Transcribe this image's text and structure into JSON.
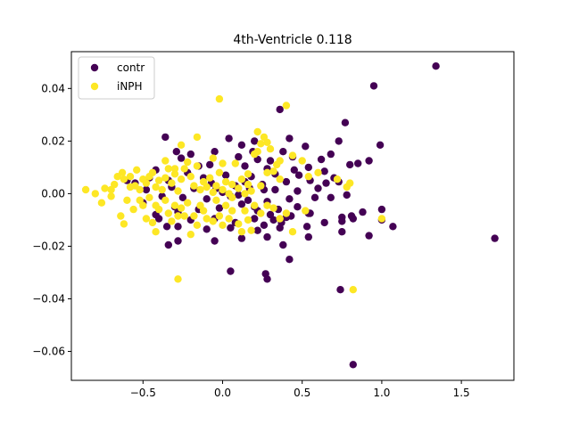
{
  "chart_data": {
    "type": "scatter",
    "title": "4th-Ventricle 0.118",
    "xlabel": "",
    "ylabel": "",
    "xlim": [
      -0.95,
      1.83
    ],
    "ylim": [
      -0.071,
      0.054
    ],
    "xticks": [
      {
        "value": -0.5,
        "label": "−0.5"
      },
      {
        "value": 0.0,
        "label": "0.0"
      },
      {
        "value": 0.5,
        "label": "0.5"
      },
      {
        "value": 1.0,
        "label": "1.0"
      },
      {
        "value": 1.5,
        "label": "1.5"
      }
    ],
    "yticks": [
      {
        "value": -0.06,
        "label": "−0.06"
      },
      {
        "value": -0.04,
        "label": "−0.04"
      },
      {
        "value": -0.02,
        "label": "−0.02"
      },
      {
        "value": 0.0,
        "label": "0.00"
      },
      {
        "value": 0.02,
        "label": "0.02"
      },
      {
        "value": 0.04,
        "label": "0.04"
      }
    ],
    "grid": false,
    "legend_position": "top-left",
    "series": [
      {
        "name": "contr",
        "color": "#440154",
        "points": [
          [
            1.34,
            0.0485
          ],
          [
            0.95,
            0.041
          ],
          [
            0.36,
            0.032
          ],
          [
            0.77,
            0.027
          ],
          [
            -0.36,
            0.0215
          ],
          [
            0.42,
            0.021
          ],
          [
            0.73,
            0.02
          ],
          [
            0.99,
            0.0185
          ],
          [
            0.52,
            0.018
          ],
          [
            0.2,
            0.02
          ],
          [
            0.04,
            0.021
          ],
          [
            -0.29,
            0.016
          ],
          [
            -0.2,
            0.015
          ],
          [
            -0.05,
            0.016
          ],
          [
            0.1,
            0.014
          ],
          [
            0.22,
            0.013
          ],
          [
            0.38,
            0.016
          ],
          [
            0.62,
            0.013
          ],
          [
            0.68,
            0.015
          ],
          [
            0.8,
            0.011
          ],
          [
            0.92,
            0.0125
          ],
          [
            0.85,
            0.0115
          ],
          [
            0.45,
            0.009
          ],
          [
            0.54,
            0.01
          ],
          [
            0.48,
            0.007
          ],
          [
            0.3,
            0.0125
          ],
          [
            0.14,
            0.0105
          ],
          [
            -0.08,
            0.011
          ],
          [
            -0.42,
            0.009
          ],
          [
            -0.22,
            0.008
          ],
          [
            -0.12,
            0.006
          ],
          [
            0.02,
            0.007
          ],
          [
            0.18,
            0.0065
          ],
          [
            0.33,
            0.0075
          ],
          [
            0.55,
            0.005
          ],
          [
            0.65,
            0.004
          ],
          [
            0.73,
            0.0045
          ],
          [
            0.4,
            0.0045
          ],
          [
            0.25,
            0.0035
          ],
          [
            0.08,
            0.003
          ],
          [
            -0.04,
            0.002
          ],
          [
            -0.18,
            0.002
          ],
          [
            -0.32,
            0.0025
          ],
          [
            -0.48,
            0.0015
          ],
          [
            -0.55,
            0.004
          ],
          [
            -0.38,
            -0.001
          ],
          [
            -0.25,
            -0.0015
          ],
          [
            -0.1,
            -0.002
          ],
          [
            0.05,
            -0.001
          ],
          [
            0.16,
            -0.0025
          ],
          [
            0.28,
            -0.003
          ],
          [
            0.42,
            -0.002
          ],
          [
            0.58,
            -0.0015
          ],
          [
            0.68,
            -0.0015
          ],
          [
            0.78,
            -0.0005
          ],
          [
            0.47,
            -0.005
          ],
          [
            0.35,
            -0.006
          ],
          [
            0.22,
            -0.0065
          ],
          [
            0.12,
            -0.004
          ],
          [
            -0.02,
            -0.0055
          ],
          [
            -0.15,
            -0.006
          ],
          [
            -0.3,
            -0.005
          ],
          [
            -0.42,
            -0.008
          ],
          [
            -0.5,
            -0.0035
          ],
          [
            0.3,
            -0.008
          ],
          [
            0.4,
            -0.009
          ],
          [
            0.55,
            -0.0075
          ],
          [
            0.64,
            -0.011
          ],
          [
            0.75,
            -0.009
          ],
          [
            0.81,
            -0.0085
          ],
          [
            0.88,
            -0.007
          ],
          [
            1.0,
            -0.006
          ],
          [
            0.54,
            -0.0075
          ],
          [
            0.43,
            -0.0085
          ],
          [
            0.32,
            -0.01
          ],
          [
            0.2,
            -0.0095
          ],
          [
            0.08,
            -0.011
          ],
          [
            -0.05,
            -0.0095
          ],
          [
            -0.2,
            -0.01
          ],
          [
            -0.35,
            -0.0125
          ],
          [
            -0.4,
            -0.0095
          ],
          [
            -0.28,
            -0.0125
          ],
          [
            0.05,
            -0.013
          ],
          [
            0.22,
            -0.014
          ],
          [
            0.36,
            -0.013
          ],
          [
            0.53,
            -0.0125
          ],
          [
            0.75,
            -0.0105
          ],
          [
            0.82,
            -0.0095
          ],
          [
            1.0,
            -0.01
          ],
          [
            1.07,
            -0.0125
          ],
          [
            0.75,
            -0.0145
          ],
          [
            0.92,
            -0.016
          ],
          [
            0.54,
            -0.0165
          ],
          [
            0.38,
            -0.0195
          ],
          [
            0.28,
            -0.0165
          ],
          [
            0.12,
            -0.017
          ],
          [
            -0.05,
            -0.018
          ],
          [
            -0.28,
            -0.018
          ],
          [
            -0.34,
            -0.0195
          ],
          [
            1.71,
            -0.017
          ],
          [
            0.42,
            -0.025
          ],
          [
            0.05,
            -0.0295
          ],
          [
            0.27,
            -0.0305
          ],
          [
            0.28,
            -0.0325
          ],
          [
            0.74,
            -0.0365
          ],
          [
            0.82,
            -0.065
          ],
          [
            0.17,
            0.002
          ],
          [
            0.26,
            0.0015
          ],
          [
            0.1,
            -0.0005
          ],
          [
            0.0,
            0.0005
          ],
          [
            -0.07,
            0.004
          ],
          [
            0.14,
            0.0045
          ],
          [
            0.33,
            0.0015
          ],
          [
            0.47,
            0.001
          ],
          [
            0.6,
            0.002
          ],
          [
            0.44,
            0.014
          ],
          [
            0.28,
            0.0095
          ],
          [
            -0.15,
            0.0105
          ],
          [
            -0.26,
            0.0135
          ],
          [
            0.12,
            0.0185
          ],
          [
            0.19,
            0.016
          ],
          [
            -0.34,
            0.005
          ],
          [
            -0.46,
            0.006
          ],
          [
            -0.6,
            0.005
          ],
          [
            -0.28,
            -0.007
          ],
          [
            0.2,
            -0.005
          ],
          [
            0.37,
            -0.011
          ],
          [
            0.26,
            -0.012
          ],
          [
            -0.1,
            -0.0135
          ],
          [
            0.64,
            0.0085
          ],
          [
            0.7,
            0.006
          ]
        ]
      },
      {
        "name": "iNPH",
        "color": "#fde725",
        "points": [
          [
            -0.86,
            0.0015
          ],
          [
            -0.8,
            0.0
          ],
          [
            -0.74,
            0.002
          ],
          [
            -0.7,
            -0.001
          ],
          [
            -0.68,
            0.0035
          ],
          [
            -0.62,
            0.0055
          ],
          [
            -0.63,
            0.008
          ],
          [
            -0.58,
            0.0065
          ],
          [
            -0.55,
            0.003
          ],
          [
            -0.52,
            0.0015
          ],
          [
            -0.5,
            0.0055
          ],
          [
            -0.48,
            0.004
          ],
          [
            -0.46,
            0.0065
          ],
          [
            -0.44,
            0.008
          ],
          [
            -0.42,
            0.0025
          ],
          [
            -0.4,
            0.005
          ],
          [
            -0.38,
            0.0015
          ],
          [
            -0.36,
            0.006
          ],
          [
            -0.34,
            0.0095
          ],
          [
            -0.32,
            0.004
          ],
          [
            -0.3,
            0.0075
          ],
          [
            -0.28,
            0.001
          ],
          [
            -0.26,
            0.0055
          ],
          [
            -0.24,
            0.0095
          ],
          [
            -0.22,
            0.012
          ],
          [
            -0.2,
            0.0065
          ],
          [
            -0.18,
            0.003
          ],
          [
            -0.16,
            0.0105
          ],
          [
            -0.14,
            0.0015
          ],
          [
            -0.12,
            0.0045
          ],
          [
            -0.1,
            0.0025
          ],
          [
            -0.08,
            0.006
          ],
          [
            -0.06,
            0.0005
          ],
          [
            -0.04,
            0.003
          ],
          [
            -0.02,
            0.008
          ],
          [
            0.0,
            0.0015
          ],
          [
            0.02,
            0.0045
          ],
          [
            0.04,
            0.0
          ],
          [
            0.06,
            0.0035
          ],
          [
            0.08,
            0.0115
          ],
          [
            0.1,
            0.002
          ],
          [
            0.12,
            0.0055
          ],
          [
            0.14,
            0.0
          ],
          [
            0.16,
            0.0035
          ],
          [
            0.18,
            0.001
          ],
          [
            0.2,
            0.015
          ],
          [
            0.22,
            0.0235
          ],
          [
            0.24,
            0.019
          ],
          [
            0.26,
            0.0215
          ],
          [
            0.28,
            0.0195
          ],
          [
            0.3,
            0.017
          ],
          [
            0.32,
            0.0085
          ],
          [
            0.34,
            0.011
          ],
          [
            0.36,
            0.0055
          ],
          [
            0.4,
            0.0335
          ],
          [
            0.44,
            0.0145
          ],
          [
            0.5,
            0.0125
          ],
          [
            0.54,
            0.0065
          ],
          [
            0.6,
            0.008
          ],
          [
            0.72,
            0.0055
          ],
          [
            0.78,
            0.0025
          ],
          [
            0.8,
            0.004
          ],
          [
            -0.02,
            0.036
          ],
          [
            0.22,
            0.016
          ],
          [
            -0.16,
            0.0215
          ],
          [
            -0.26,
            0.0185
          ],
          [
            -0.6,
            -0.0025
          ],
          [
            -0.64,
            -0.0085
          ],
          [
            -0.62,
            -0.0115
          ],
          [
            -0.56,
            -0.006
          ],
          [
            -0.5,
            -0.0045
          ],
          [
            -0.48,
            -0.0095
          ],
          [
            -0.46,
            -0.0015
          ],
          [
            -0.44,
            -0.011
          ],
          [
            -0.42,
            -0.0145
          ],
          [
            -0.4,
            -0.006
          ],
          [
            -0.36,
            -0.0025
          ],
          [
            -0.34,
            -0.0075
          ],
          [
            -0.32,
            -0.0105
          ],
          [
            -0.3,
            -0.0045
          ],
          [
            -0.28,
            -0.0085
          ],
          [
            -0.26,
            -0.0055
          ],
          [
            -0.24,
            -0.0085
          ],
          [
            -0.22,
            -0.0035
          ],
          [
            -0.2,
            -0.0155
          ],
          [
            -0.18,
            -0.0085
          ],
          [
            -0.16,
            -0.012
          ],
          [
            -0.14,
            -0.0045
          ],
          [
            -0.12,
            -0.0065
          ],
          [
            -0.1,
            -0.0095
          ],
          [
            -0.06,
            -0.0105
          ],
          [
            -0.04,
            -0.0025
          ],
          [
            -0.02,
            -0.0085
          ],
          [
            0.0,
            -0.012
          ],
          [
            0.02,
            -0.0045
          ],
          [
            0.04,
            -0.0095
          ],
          [
            0.06,
            -0.0065
          ],
          [
            0.1,
            -0.0115
          ],
          [
            0.12,
            -0.0145
          ],
          [
            0.14,
            -0.0065
          ],
          [
            0.16,
            -0.01
          ],
          [
            0.18,
            -0.014
          ],
          [
            0.2,
            -0.0045
          ],
          [
            0.24,
            -0.0075
          ],
          [
            0.28,
            -0.0045
          ],
          [
            0.32,
            -0.0055
          ],
          [
            0.36,
            -0.0095
          ],
          [
            0.4,
            -0.0075
          ],
          [
            0.44,
            -0.0145
          ],
          [
            0.52,
            -0.0065
          ],
          [
            1.0,
            -0.0095
          ],
          [
            0.82,
            -0.0365
          ],
          [
            -0.28,
            -0.0325
          ],
          [
            -0.42,
            -0.0045
          ],
          [
            -0.58,
            0.0025
          ],
          [
            -0.7,
            0.0015
          ],
          [
            -0.76,
            -0.0035
          ],
          [
            -0.66,
            0.0065
          ],
          [
            -0.54,
            0.009
          ],
          [
            -0.36,
            0.0125
          ],
          [
            -0.3,
            0.0095
          ],
          [
            -0.06,
            0.0135
          ],
          [
            0.0,
            0.0115
          ],
          [
            0.24,
            0.003
          ],
          [
            0.28,
            0.008
          ],
          [
            0.36,
            0.0125
          ],
          [
            -0.52,
            -0.0025
          ],
          [
            0.16,
            0.0075
          ],
          [
            0.06,
            -0.0015
          ]
        ]
      }
    ]
  }
}
